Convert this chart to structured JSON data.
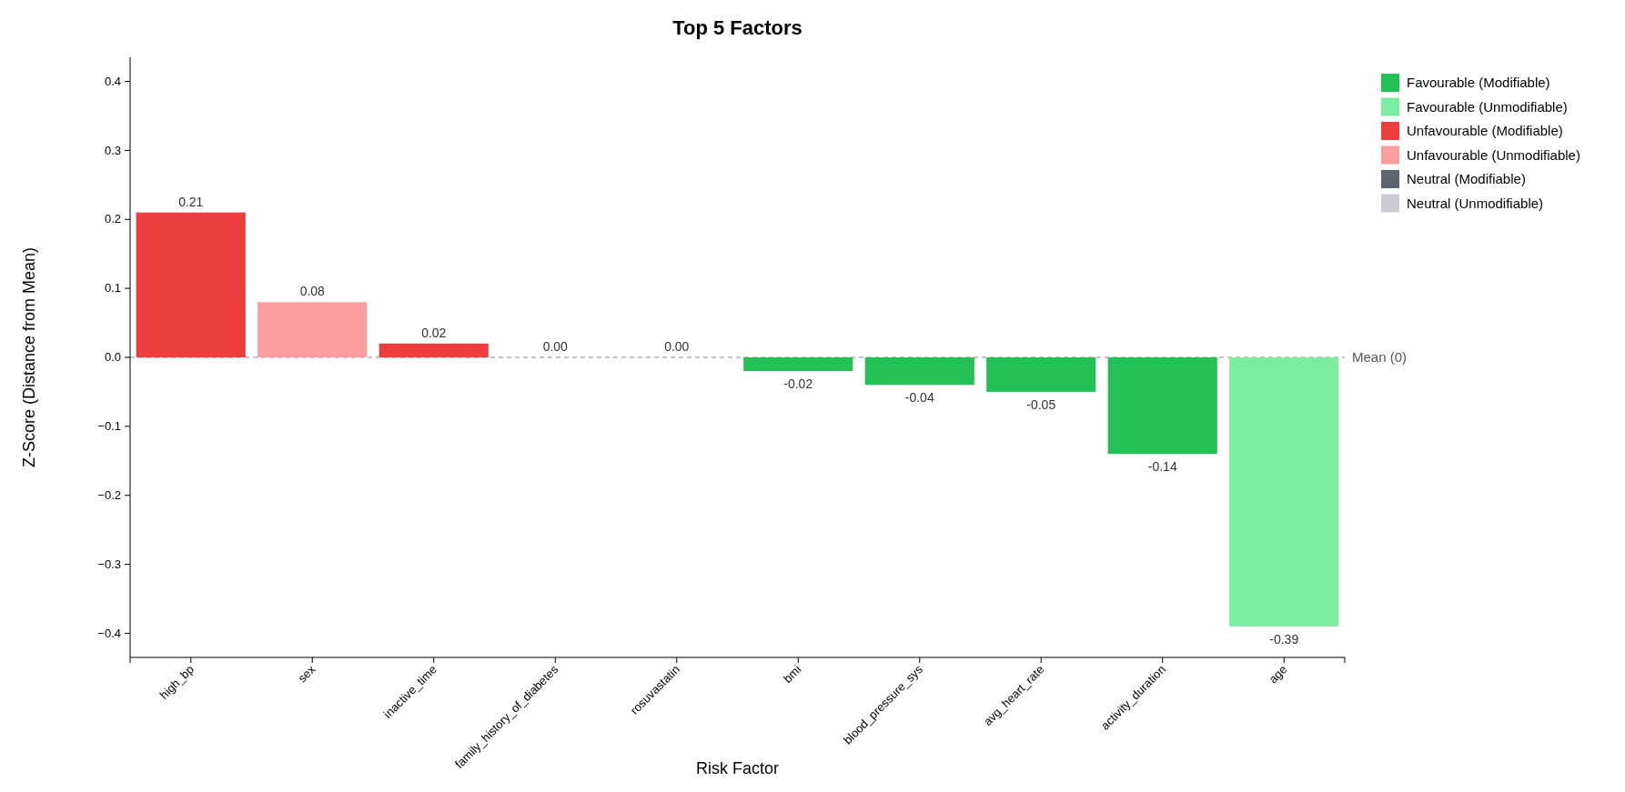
{
  "chart_data": {
    "type": "bar",
    "title": "Top 5 Factors",
    "xlabel": "Risk Factor",
    "ylabel": "Z-Score (Distance from Mean)",
    "categories": [
      "high_bp",
      "sex",
      "inactive_time",
      "family_history_of_diabetes",
      "rosuvastatin",
      "bmi",
      "blood_pressure_sys",
      "avg_heart_rate",
      "activity_duration",
      "age"
    ],
    "series": [
      {
        "name": "Favourable (Modifiable)",
        "color": "#22c055",
        "values": [
          null,
          null,
          null,
          null,
          null,
          -0.02,
          -0.04,
          -0.05,
          -0.14,
          null
        ],
        "value_labels": [
          null,
          null,
          null,
          null,
          null,
          "-0.02",
          "-0.04",
          "-0.05",
          "-0.14",
          null
        ]
      },
      {
        "name": "Favourable (Unmodifiable)",
        "color": "#7beca0",
        "values": [
          null,
          null,
          null,
          null,
          null,
          null,
          null,
          null,
          null,
          -0.39
        ],
        "value_labels": [
          null,
          null,
          null,
          null,
          null,
          null,
          null,
          null,
          null,
          "-0.39"
        ]
      },
      {
        "name": "Unfavourable (Modifiable)",
        "color": "#ee3d3e",
        "values": [
          0.21,
          null,
          0.02,
          null,
          null,
          null,
          null,
          null,
          null,
          null
        ],
        "value_labels": [
          "0.21",
          null,
          "0.02",
          null,
          null,
          null,
          null,
          null,
          null,
          null
        ]
      },
      {
        "name": "Unfavourable (Unmodifiable)",
        "color": "#fa9d9e",
        "values": [
          null,
          0.08,
          null,
          null,
          null,
          null,
          null,
          null,
          null,
          null
        ],
        "value_labels": [
          null,
          "0.08",
          null,
          null,
          null,
          null,
          null,
          null,
          null,
          null
        ]
      },
      {
        "name": "Neutral (Modifiable)",
        "color": "#5f6570",
        "values": [
          null,
          null,
          null,
          null,
          0,
          null,
          null,
          null,
          null,
          null
        ],
        "value_labels": [
          null,
          null,
          null,
          null,
          "0.00",
          null,
          null,
          null,
          null,
          null
        ]
      },
      {
        "name": "Neutral (Unmodifiable)",
        "color": "#c9cdd3",
        "values": [
          null,
          null,
          null,
          0,
          null,
          null,
          null,
          null,
          null,
          null
        ],
        "value_labels": [
          null,
          null,
          null,
          "0.00",
          null,
          null,
          null,
          null,
          null,
          null
        ]
      }
    ],
    "ylim": [
      -0.435,
      0.435
    ],
    "yticks": [
      {
        "value": -0.4,
        "label": "−0.4"
      },
      {
        "value": -0.3,
        "label": "−0.3"
      },
      {
        "value": -0.2,
        "label": "−0.2"
      },
      {
        "value": -0.1,
        "label": "−0.1"
      },
      {
        "value": 0,
        "label": "0.0"
      },
      0.1,
      0.2,
      0.3,
      0.4
    ],
    "ref_lines": [
      {
        "axis": "y",
        "value": 0,
        "label": "Mean (0)",
        "color": "#888888",
        "line_style": "dashed"
      }
    ],
    "legend": "top right",
    "grid": false
  }
}
